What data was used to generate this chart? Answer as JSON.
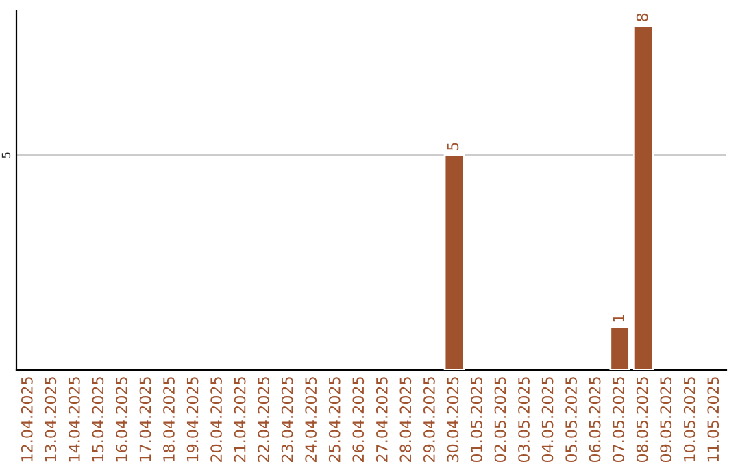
{
  "chart_data": {
    "type": "bar",
    "categories": [
      "12.04.2025",
      "13.04.2025",
      "14.04.2025",
      "15.04.2025",
      "16.04.2025",
      "17.04.2025",
      "18.04.2025",
      "19.04.2025",
      "20.04.2025",
      "21.04.2025",
      "22.04.2025",
      "23.04.2025",
      "24.04.2025",
      "25.04.2025",
      "26.04.2025",
      "27.04.2025",
      "28.04.2025",
      "29.04.2025",
      "30.04.2025",
      "01.05.2025",
      "02.05.2025",
      "03.05.2025",
      "04.05.2025",
      "05.05.2025",
      "06.05.2025",
      "07.05.2025",
      "08.05.2025",
      "09.05.2025",
      "10.05.2025",
      "11.05.2025"
    ],
    "values": [
      null,
      null,
      null,
      null,
      null,
      null,
      null,
      null,
      null,
      null,
      null,
      null,
      null,
      null,
      null,
      null,
      null,
      null,
      5,
      null,
      null,
      null,
      null,
      null,
      null,
      1,
      8,
      null,
      null,
      null
    ],
    "data_labels": true,
    "color": "#a0522d",
    "ylim": [
      0,
      8.35
    ],
    "yticks": [
      5
    ],
    "grid": "y"
  }
}
